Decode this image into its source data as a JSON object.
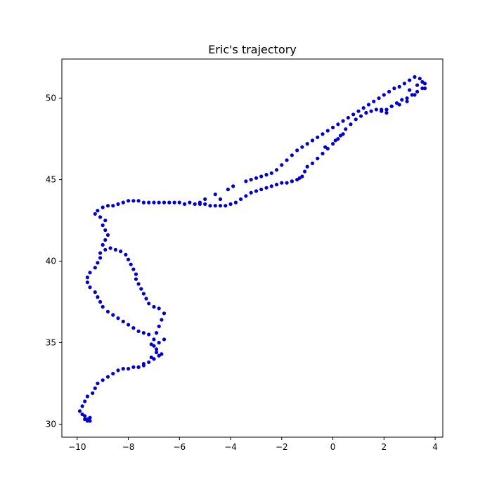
{
  "chart_data": {
    "type": "scatter",
    "title": "Eric's trajectory",
    "xlabel": "",
    "ylabel": "",
    "xlim": [
      -10.6,
      4.3
    ],
    "ylim": [
      29.2,
      52.4
    ],
    "xticks": [
      -10,
      -8,
      -6,
      -4,
      -2,
      0,
      2,
      4
    ],
    "yticks": [
      30,
      35,
      40,
      45,
      50
    ],
    "xtick_labels": [
      "−10",
      "−8",
      "−6",
      "−4",
      "−2",
      "0",
      "2",
      "4"
    ],
    "ytick_labels": [
      "30",
      "35",
      "40",
      "45",
      "50"
    ],
    "grid": false,
    "legend": false,
    "marker_color": "#0000cc",
    "series": [
      {
        "name": "",
        "points": [
          [
            -9.6,
            30.2
          ],
          [
            -9.7,
            30.3
          ],
          [
            -9.5,
            30.4
          ],
          [
            -9.8,
            30.6
          ],
          [
            -9.9,
            30.8
          ],
          [
            -9.8,
            31.1
          ],
          [
            -9.7,
            31.4
          ],
          [
            -9.6,
            31.7
          ],
          [
            -9.4,
            31.9
          ],
          [
            -9.3,
            32.2
          ],
          [
            -9.2,
            32.5
          ],
          [
            -9.0,
            32.7
          ],
          [
            -8.8,
            32.9
          ],
          [
            -8.6,
            33.1
          ],
          [
            -8.4,
            33.3
          ],
          [
            -8.2,
            33.4
          ],
          [
            -8.0,
            33.4
          ],
          [
            -7.8,
            33.5
          ],
          [
            -7.6,
            33.5
          ],
          [
            -7.4,
            33.6
          ],
          [
            -7.2,
            33.8
          ],
          [
            -7.0,
            34.0
          ],
          [
            -6.8,
            34.2
          ],
          [
            -6.7,
            34.3
          ],
          [
            -6.9,
            34.6
          ],
          [
            -7.1,
            34.9
          ],
          [
            -7.0,
            35.2
          ],
          [
            -6.9,
            35.6
          ],
          [
            -6.8,
            36.0
          ],
          [
            -6.7,
            36.4
          ],
          [
            -6.6,
            36.8
          ],
          [
            -6.8,
            37.1
          ],
          [
            -7.0,
            37.2
          ],
          [
            -7.2,
            37.4
          ],
          [
            -7.3,
            37.7
          ],
          [
            -7.4,
            38.0
          ],
          [
            -7.5,
            38.3
          ],
          [
            -7.6,
            38.6
          ],
          [
            -7.7,
            38.9
          ],
          [
            -7.7,
            39.2
          ],
          [
            -7.8,
            39.5
          ],
          [
            -7.9,
            39.8
          ],
          [
            -8.0,
            40.1
          ],
          [
            -8.1,
            40.4
          ],
          [
            -8.3,
            40.6
          ],
          [
            -8.5,
            40.7
          ],
          [
            -8.7,
            40.8
          ],
          [
            -8.9,
            40.7
          ],
          [
            -9.1,
            40.5
          ],
          [
            -9.1,
            40.2
          ],
          [
            -9.2,
            39.9
          ],
          [
            -9.3,
            39.6
          ],
          [
            -9.5,
            39.3
          ],
          [
            -9.6,
            39.0
          ],
          [
            -9.6,
            38.7
          ],
          [
            -9.5,
            38.4
          ],
          [
            -9.3,
            38.1
          ],
          [
            -9.2,
            37.8
          ],
          [
            -9.1,
            37.5
          ],
          [
            -9.0,
            37.2
          ],
          [
            -8.8,
            36.9
          ],
          [
            -8.6,
            36.7
          ],
          [
            -8.4,
            36.5
          ],
          [
            -8.2,
            36.3
          ],
          [
            -8.0,
            36.1
          ],
          [
            -7.8,
            35.9
          ],
          [
            -7.6,
            35.7
          ],
          [
            -7.4,
            35.6
          ],
          [
            -7.2,
            35.5
          ],
          [
            -9.0,
            41.0
          ],
          [
            -8.9,
            41.3
          ],
          [
            -8.8,
            41.6
          ],
          [
            -8.9,
            41.9
          ],
          [
            -9.0,
            42.2
          ],
          [
            -8.9,
            42.5
          ],
          [
            -9.1,
            42.7
          ],
          [
            -9.3,
            42.9
          ],
          [
            -9.2,
            43.1
          ],
          [
            -9.0,
            43.3
          ],
          [
            -8.8,
            43.4
          ],
          [
            -8.6,
            43.4
          ],
          [
            -8.4,
            43.5
          ],
          [
            -8.2,
            43.6
          ],
          [
            -8.0,
            43.7
          ],
          [
            -7.8,
            43.7
          ],
          [
            -7.6,
            43.7
          ],
          [
            -7.4,
            43.6
          ],
          [
            -7.2,
            43.6
          ],
          [
            -7.0,
            43.6
          ],
          [
            -6.8,
            43.6
          ],
          [
            -6.6,
            43.6
          ],
          [
            -6.4,
            43.6
          ],
          [
            -6.2,
            43.6
          ],
          [
            -6.0,
            43.6
          ],
          [
            -5.8,
            43.5
          ],
          [
            -5.6,
            43.6
          ],
          [
            -5.4,
            43.5
          ],
          [
            -5.2,
            43.5
          ],
          [
            -5.0,
            43.5
          ],
          [
            -4.8,
            43.4
          ],
          [
            -4.6,
            43.4
          ],
          [
            -4.4,
            43.4
          ],
          [
            -4.2,
            43.4
          ],
          [
            -4.0,
            43.5
          ],
          [
            -3.8,
            43.6
          ],
          [
            -3.6,
            43.8
          ],
          [
            -3.4,
            44.0
          ],
          [
            -3.2,
            44.2
          ],
          [
            -3.0,
            44.3
          ],
          [
            -2.8,
            44.4
          ],
          [
            -2.6,
            44.5
          ],
          [
            -2.4,
            44.6
          ],
          [
            -2.2,
            44.7
          ],
          [
            -2.0,
            44.8
          ],
          [
            -1.8,
            44.8
          ],
          [
            -1.6,
            44.9
          ],
          [
            -1.4,
            45.0
          ],
          [
            -1.2,
            45.2
          ],
          [
            -1.1,
            45.5
          ],
          [
            -1.0,
            45.8
          ],
          [
            -0.8,
            46.0
          ],
          [
            -0.6,
            46.3
          ],
          [
            -0.4,
            46.6
          ],
          [
            -0.2,
            46.9
          ],
          [
            0.0,
            47.2
          ],
          [
            0.2,
            47.5
          ],
          [
            0.4,
            47.8
          ],
          [
            0.5,
            48.1
          ],
          [
            0.7,
            48.4
          ],
          [
            0.9,
            48.7
          ],
          [
            1.1,
            48.9
          ],
          [
            1.3,
            49.1
          ],
          [
            1.5,
            49.2
          ],
          [
            1.7,
            49.3
          ],
          [
            1.9,
            49.2
          ],
          [
            2.1,
            49.3
          ],
          [
            2.3,
            49.5
          ],
          [
            2.5,
            49.7
          ],
          [
            2.7,
            49.9
          ],
          [
            2.9,
            50.0
          ],
          [
            3.1,
            50.2
          ],
          [
            3.3,
            50.4
          ],
          [
            3.5,
            50.6
          ],
          [
            3.6,
            50.9
          ],
          [
            3.4,
            51.2
          ],
          [
            3.2,
            51.3
          ],
          [
            3.0,
            51.1
          ],
          [
            2.8,
            50.9
          ],
          [
            2.6,
            50.7
          ],
          [
            2.4,
            50.6
          ],
          [
            2.2,
            50.4
          ],
          [
            2.0,
            50.2
          ],
          [
            1.8,
            50.0
          ],
          [
            1.6,
            49.8
          ],
          [
            1.4,
            49.6
          ],
          [
            1.2,
            49.4
          ],
          [
            1.0,
            49.2
          ],
          [
            0.8,
            49.0
          ],
          [
            0.6,
            48.8
          ],
          [
            0.4,
            48.6
          ],
          [
            0.2,
            48.4
          ],
          [
            0.0,
            48.2
          ],
          [
            -0.2,
            48.0
          ],
          [
            -0.4,
            47.8
          ],
          [
            -0.6,
            47.6
          ],
          [
            -0.8,
            47.4
          ],
          [
            -1.0,
            47.2
          ],
          [
            -1.2,
            47.0
          ],
          [
            -1.4,
            46.8
          ],
          [
            -1.6,
            46.5
          ],
          [
            -1.8,
            46.2
          ],
          [
            -2.0,
            45.9
          ],
          [
            -2.2,
            45.6
          ],
          [
            -2.4,
            45.4
          ],
          [
            -2.6,
            45.3
          ],
          [
            -2.8,
            45.2
          ],
          [
            -3.0,
            45.1
          ],
          [
            -3.2,
            45.0
          ],
          [
            -3.4,
            44.9
          ],
          [
            -3.9,
            44.6
          ],
          [
            -4.1,
            44.4
          ],
          [
            -4.6,
            44.1
          ],
          [
            -4.4,
            43.8
          ],
          [
            -5.0,
            43.8
          ],
          [
            -5.2,
            43.6
          ],
          [
            -6.6,
            35.2
          ],
          [
            -6.8,
            35.0
          ],
          [
            -7.0,
            34.8
          ],
          [
            -6.9,
            34.4
          ],
          [
            -7.1,
            34.1
          ],
          [
            -7.4,
            33.7
          ],
          [
            -7.6,
            33.5
          ],
          [
            -9.7,
            30.5
          ],
          [
            -9.6,
            30.3
          ],
          [
            -9.5,
            30.2
          ],
          [
            2.6,
            49.6
          ],
          [
            2.3,
            49.5
          ],
          [
            2.1,
            49.1
          ],
          [
            1.9,
            49.3
          ],
          [
            3.0,
            50.5
          ],
          [
            3.3,
            50.8
          ],
          [
            3.5,
            51.0
          ],
          [
            3.2,
            50.2
          ],
          [
            2.9,
            49.8
          ],
          [
            3.6,
            50.6
          ],
          [
            -1.3,
            45.1
          ],
          [
            -1.6,
            44.9
          ],
          [
            -0.3,
            47.0
          ],
          [
            0.1,
            47.4
          ],
          [
            0.3,
            47.7
          ]
        ]
      }
    ]
  }
}
